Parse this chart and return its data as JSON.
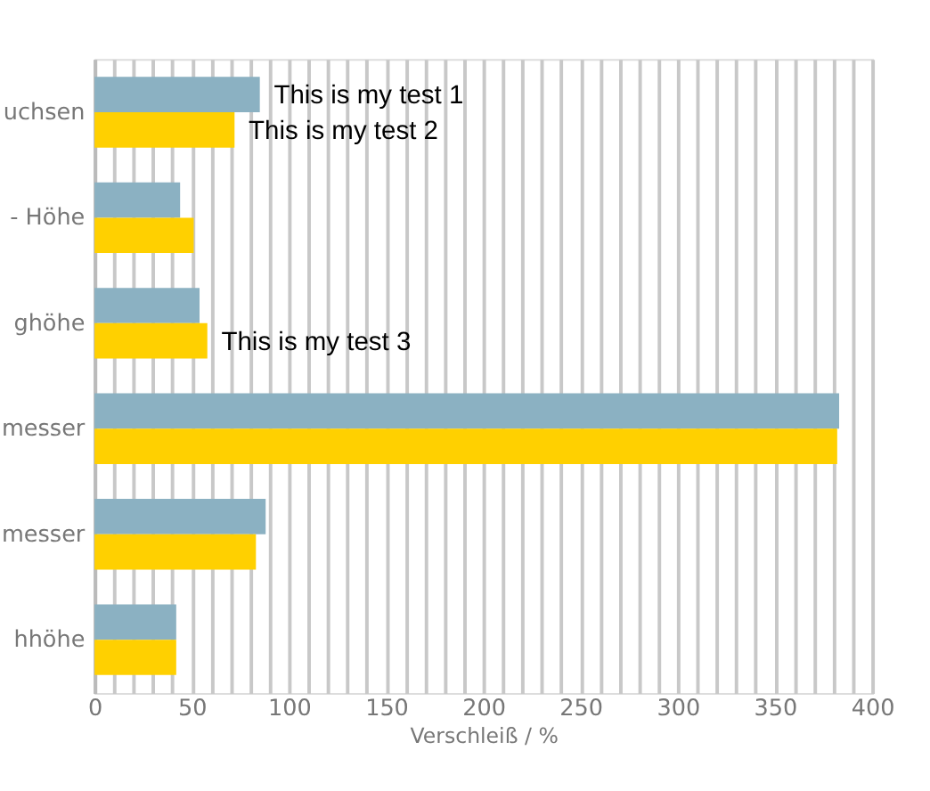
{
  "chart_data": {
    "type": "bar",
    "orientation": "horizontal",
    "xlabel": "Verschleiß / %",
    "categories": [
      "uchsen",
      "- Höhe",
      "ghöhe",
      "messer",
      "messer",
      "hhöhe"
    ],
    "series": [
      {
        "color": "#8bb1c2",
        "values": [
          85,
          44,
          54,
          383,
          88,
          42
        ]
      },
      {
        "color": "#ffd000",
        "values": [
          72,
          51,
          58,
          382,
          83,
          42
        ]
      }
    ],
    "xlim": [
      0,
      400
    ],
    "xticks": [
      0,
      {
        "value": 10,
        "label": null
      },
      {
        "value": 20,
        "label": null
      },
      {
        "value": 30,
        "label": null
      },
      {
        "value": 40,
        "label": null
      },
      50,
      {
        "value": 60,
        "label": null
      },
      {
        "value": 70,
        "label": null
      },
      {
        "value": 80,
        "label": null
      },
      {
        "value": 90,
        "label": null
      },
      100,
      {
        "value": 110,
        "label": null
      },
      {
        "value": 120,
        "label": null
      },
      {
        "value": 130,
        "label": null
      },
      {
        "value": 140,
        "label": null
      },
      150,
      {
        "value": 160,
        "label": null
      },
      {
        "value": 170,
        "label": null
      },
      {
        "value": 180,
        "label": null
      },
      {
        "value": 190,
        "label": null
      },
      200,
      {
        "value": 210,
        "label": null
      },
      {
        "value": 220,
        "label": null
      },
      {
        "value": 230,
        "label": null
      },
      {
        "value": 240,
        "label": null
      },
      250,
      {
        "value": 260,
        "label": null
      },
      {
        "value": 270,
        "label": null
      },
      {
        "value": 280,
        "label": null
      },
      {
        "value": 290,
        "label": null
      },
      300,
      {
        "value": 310,
        "label": null
      },
      {
        "value": 320,
        "label": null
      },
      {
        "value": 330,
        "label": null
      },
      {
        "value": 340,
        "label": null
      },
      350,
      {
        "value": 360,
        "label": null
      },
      {
        "value": 370,
        "label": null
      },
      {
        "value": 380,
        "label": null
      },
      {
        "value": 390,
        "label": null
      },
      400
    ],
    "grid": "x",
    "annotations": [
      {
        "text": "This is my test 1",
        "x": 85,
        "y": "uchsen"
      },
      {
        "text": "This is my test 2",
        "x": 72,
        "y": "uchsen"
      },
      {
        "text": "This is my test 3",
        "x": 58,
        "y": "ghöhe"
      }
    ]
  }
}
